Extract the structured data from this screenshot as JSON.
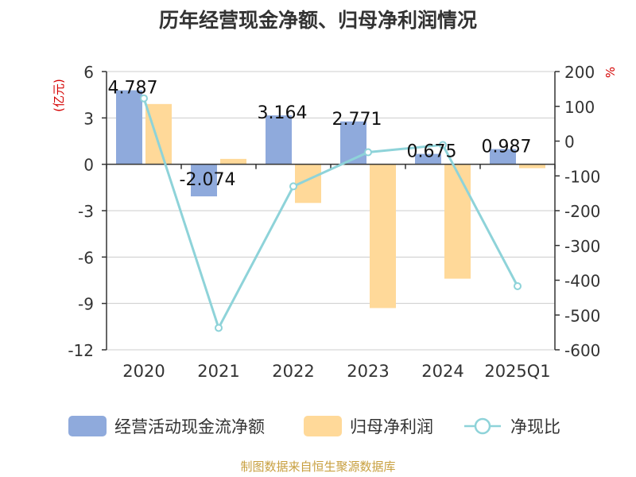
{
  "title": "历年经营现金净额、归母净利润情况",
  "source": "制图数据来自恒生聚源数据库",
  "colors": {
    "cash": "#8faadc",
    "profit": "#ffd999",
    "ratio": "#8ed3d9",
    "axis_unit": "#d40000",
    "grid": "#cccccc",
    "axis": "#333333",
    "text": "#333333"
  },
  "chart_data": {
    "type": "bar",
    "title": "历年经营现金净额、归母净利润情况",
    "categories": [
      "2020",
      "2021",
      "2022",
      "2023",
      "2024",
      "2025Q1"
    ],
    "y_left": {
      "label": "(亿元)",
      "min": -12,
      "max": 6,
      "ticks": [
        6,
        3,
        0,
        -3,
        -6,
        -9,
        -12
      ]
    },
    "y_right": {
      "label": "%",
      "min": -600,
      "max": 200,
      "ticks": [
        200,
        100,
        0,
        -100,
        -200,
        -300,
        -400,
        -500,
        -600
      ]
    },
    "series": [
      {
        "name": "经营活动现金流净额",
        "type": "bar",
        "axis": "left",
        "values": [
          4.787,
          -2.074,
          3.164,
          2.771,
          0.675,
          0.987
        ],
        "labels": [
          "4.787",
          "-2.074",
          "3.164",
          "2.771",
          "0.675",
          "0.987"
        ]
      },
      {
        "name": "归母净利润",
        "type": "bar",
        "axis": "left",
        "values": [
          3.9,
          0.35,
          -2.5,
          -9.3,
          -7.4,
          -0.25
        ]
      },
      {
        "name": "净现比",
        "type": "line",
        "axis": "right",
        "values": [
          123,
          -537,
          -130,
          -32,
          -11,
          -417
        ]
      }
    ],
    "legend_position": "bottom",
    "grid": true
  }
}
